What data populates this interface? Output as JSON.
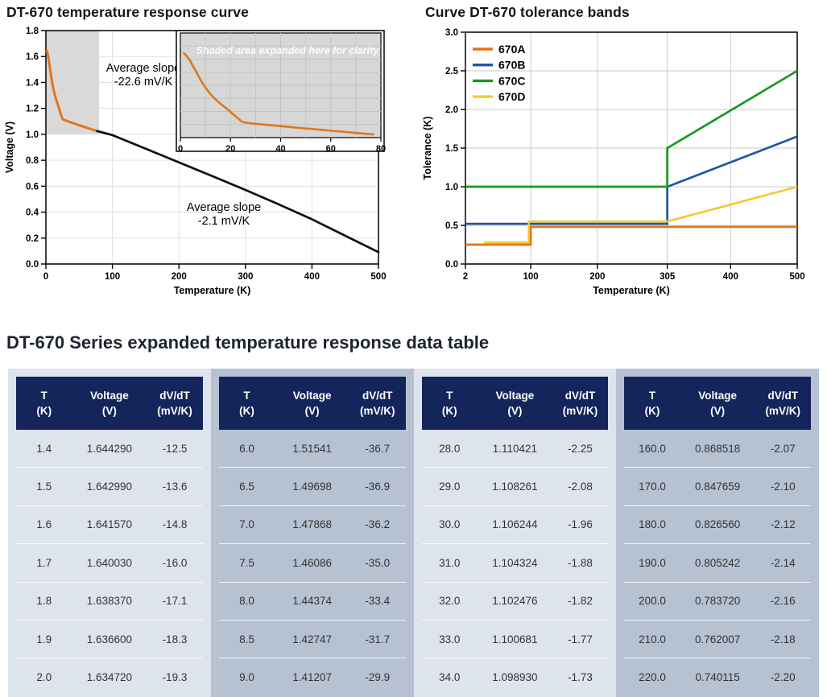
{
  "chart_data": [
    {
      "type": "line",
      "title": "DT-670 temperature response curve",
      "xlabel": "Temperature (K)",
      "ylabel": "Voltage (V)",
      "xlim": [
        0,
        500
      ],
      "ylim": [
        0,
        1.8
      ],
      "xticks": [
        0,
        100,
        200,
        300,
        400,
        500
      ],
      "xtick_labels": [
        "0",
        "100",
        "200",
        "300",
        "400",
        "500"
      ],
      "yticks": [
        0,
        0.2,
        0.4,
        0.6,
        0.8,
        1.0,
        1.2,
        1.4,
        1.6,
        1.8
      ],
      "ytick_labels": [
        "0.0",
        "0.2",
        "0.4",
        "0.6",
        "0.8",
        "1.0",
        "1.2",
        "1.4",
        "1.6",
        "1.8"
      ],
      "grid": true,
      "shaded_region": {
        "x": [
          0,
          80
        ],
        "y": [
          1.0,
          1.8
        ],
        "color": "#d9d9d9"
      },
      "series": [
        {
          "name": "low-temperature-segment",
          "color": "#e0761b",
          "x": [
            1.4,
            2,
            3,
            4,
            5,
            6,
            7,
            8,
            9,
            10,
            12,
            14,
            16,
            18,
            20,
            22,
            24,
            25,
            28,
            32,
            36,
            40,
            45,
            50,
            55,
            60,
            65,
            70,
            77
          ],
          "y": [
            1.644,
            1.635,
            1.612,
            1.584,
            1.547,
            1.515,
            1.479,
            1.444,
            1.412,
            1.383,
            1.333,
            1.293,
            1.259,
            1.229,
            1.197,
            1.163,
            1.131,
            1.118,
            1.11,
            1.102,
            1.095,
            1.088,
            1.079,
            1.07,
            1.062,
            1.053,
            1.045,
            1.036,
            1.025
          ]
        },
        {
          "name": "high-temperature-segment",
          "color": "#111111",
          "x": [
            77,
            100,
            150,
            200,
            250,
            300,
            350,
            400,
            450,
            500
          ],
          "y": [
            1.025,
            0.994,
            0.889,
            0.784,
            0.678,
            0.571,
            0.46,
            0.345,
            0.218,
            0.091
          ]
        }
      ],
      "annotations": [
        {
          "lines": [
            "Average slope",
            "-22.6 mV/K"
          ]
        },
        {
          "lines": [
            "Average slope",
            "-2.1 mV/K"
          ]
        }
      ],
      "inset": {
        "note": "Shaded area expanded here for clarity",
        "xlim": [
          0,
          80
        ],
        "ylim": [
          1.0,
          1.8
        ],
        "xticks": [
          0,
          20,
          40,
          60,
          80
        ],
        "xtick_labels": [
          "0",
          "20",
          "40",
          "60",
          "80"
        ],
        "grid": true,
        "bg": "#d7d7d7"
      }
    },
    {
      "type": "line",
      "title": "Curve DT-670 tolerance bands",
      "xlabel": "Temperature (K)",
      "ylabel": "Tolerance (K)",
      "xlim": [
        2,
        500
      ],
      "ylim": [
        0,
        3.0
      ],
      "xticks": [
        2,
        100,
        200,
        305,
        400,
        500
      ],
      "xtick_labels": [
        "2",
        "100",
        "200",
        "305",
        "400",
        "500"
      ],
      "yticks": [
        0,
        0.5,
        1.0,
        1.5,
        2.0,
        2.5,
        3.0
      ],
      "ytick_labels": [
        "0.0",
        "0.5",
        "1.0",
        "1.5",
        "2.0",
        "2.5",
        "3.0"
      ],
      "grid": true,
      "legend_position": "top-left",
      "series": [
        {
          "name": "670A",
          "color": "#e0761b",
          "points": [
            [
              2,
              0.25
            ],
            [
              100,
              0.25
            ],
            [
              100,
              0.48
            ],
            [
              500,
              0.48
            ]
          ]
        },
        {
          "name": "670B",
          "color": "#1f55a5",
          "points": [
            [
              2,
              0.52
            ],
            [
              305,
              0.52
            ],
            [
              305,
              1.0
            ],
            [
              500,
              1.65
            ]
          ]
        },
        {
          "name": "670C",
          "color": "#149b1e",
          "points": [
            [
              2,
              1.0
            ],
            [
              305,
              1.0
            ],
            [
              305,
              1.5
            ],
            [
              500,
              2.5
            ]
          ]
        },
        {
          "name": "670D",
          "color": "#f2ca33",
          "points": [
            [
              30,
              0.28
            ],
            [
              97,
              0.28
            ],
            [
              97,
              0.55
            ],
            [
              305,
              0.55
            ],
            [
              500,
              1.0
            ]
          ]
        }
      ]
    }
  ],
  "table": {
    "title": "DT-670 Series expanded temperature response data table",
    "headers": [
      [
        "T",
        "(K)"
      ],
      [
        "Voltage",
        "(V)"
      ],
      [
        "dV/dT",
        "(mV/K)"
      ]
    ],
    "palette": {
      "header_bg": "#14255c",
      "panel_light": "#dee4ee",
      "panel_dark": "#b6c2d2"
    },
    "groups": [
      {
        "shade": "light",
        "rows": [
          [
            "1.4",
            "1.644290",
            "-12.5"
          ],
          [
            "1.5",
            "1.642990",
            "-13.6"
          ],
          [
            "1.6",
            "1.641570",
            "-14.8"
          ],
          [
            "1.7",
            "1.640030",
            "-16.0"
          ],
          [
            "1.8",
            "1.638370",
            "-17.1"
          ],
          [
            "1.9",
            "1.636600",
            "-18.3"
          ],
          [
            "2.0",
            "1.634720",
            "-19.3"
          ]
        ]
      },
      {
        "shade": "dark",
        "rows": [
          [
            "6.0",
            "1.51541",
            "-36.7"
          ],
          [
            "6.5",
            "1.49698",
            "-36.9"
          ],
          [
            "7.0",
            "1.47868",
            "-36.2"
          ],
          [
            "7.5",
            "1.46086",
            "-35.0"
          ],
          [
            "8.0",
            "1.44374",
            "-33.4"
          ],
          [
            "8.5",
            "1.42747",
            "-31.7"
          ],
          [
            "9.0",
            "1.41207",
            "-29.9"
          ]
        ]
      },
      {
        "shade": "light",
        "rows": [
          [
            "28.0",
            "1.110421",
            "-2.25"
          ],
          [
            "29.0",
            "1.108261",
            "-2.08"
          ],
          [
            "30.0",
            "1.106244",
            "-1.96"
          ],
          [
            "31.0",
            "1.104324",
            "-1.88"
          ],
          [
            "32.0",
            "1.102476",
            "-1.82"
          ],
          [
            "33.0",
            "1.100681",
            "-1.77"
          ],
          [
            "34.0",
            "1.098930",
            "-1.73"
          ]
        ]
      },
      {
        "shade": "dark",
        "rows": [
          [
            "160.0",
            "0.868518",
            "-2.07"
          ],
          [
            "170.0",
            "0.847659",
            "-2.10"
          ],
          [
            "180.0",
            "0.826560",
            "-2.12"
          ],
          [
            "190.0",
            "0.805242",
            "-2.14"
          ],
          [
            "200.0",
            "0.783720",
            "-2.16"
          ],
          [
            "210.0",
            "0.762007",
            "-2.18"
          ],
          [
            "220.0",
            "0.740115",
            "-2.20"
          ]
        ]
      }
    ]
  }
}
